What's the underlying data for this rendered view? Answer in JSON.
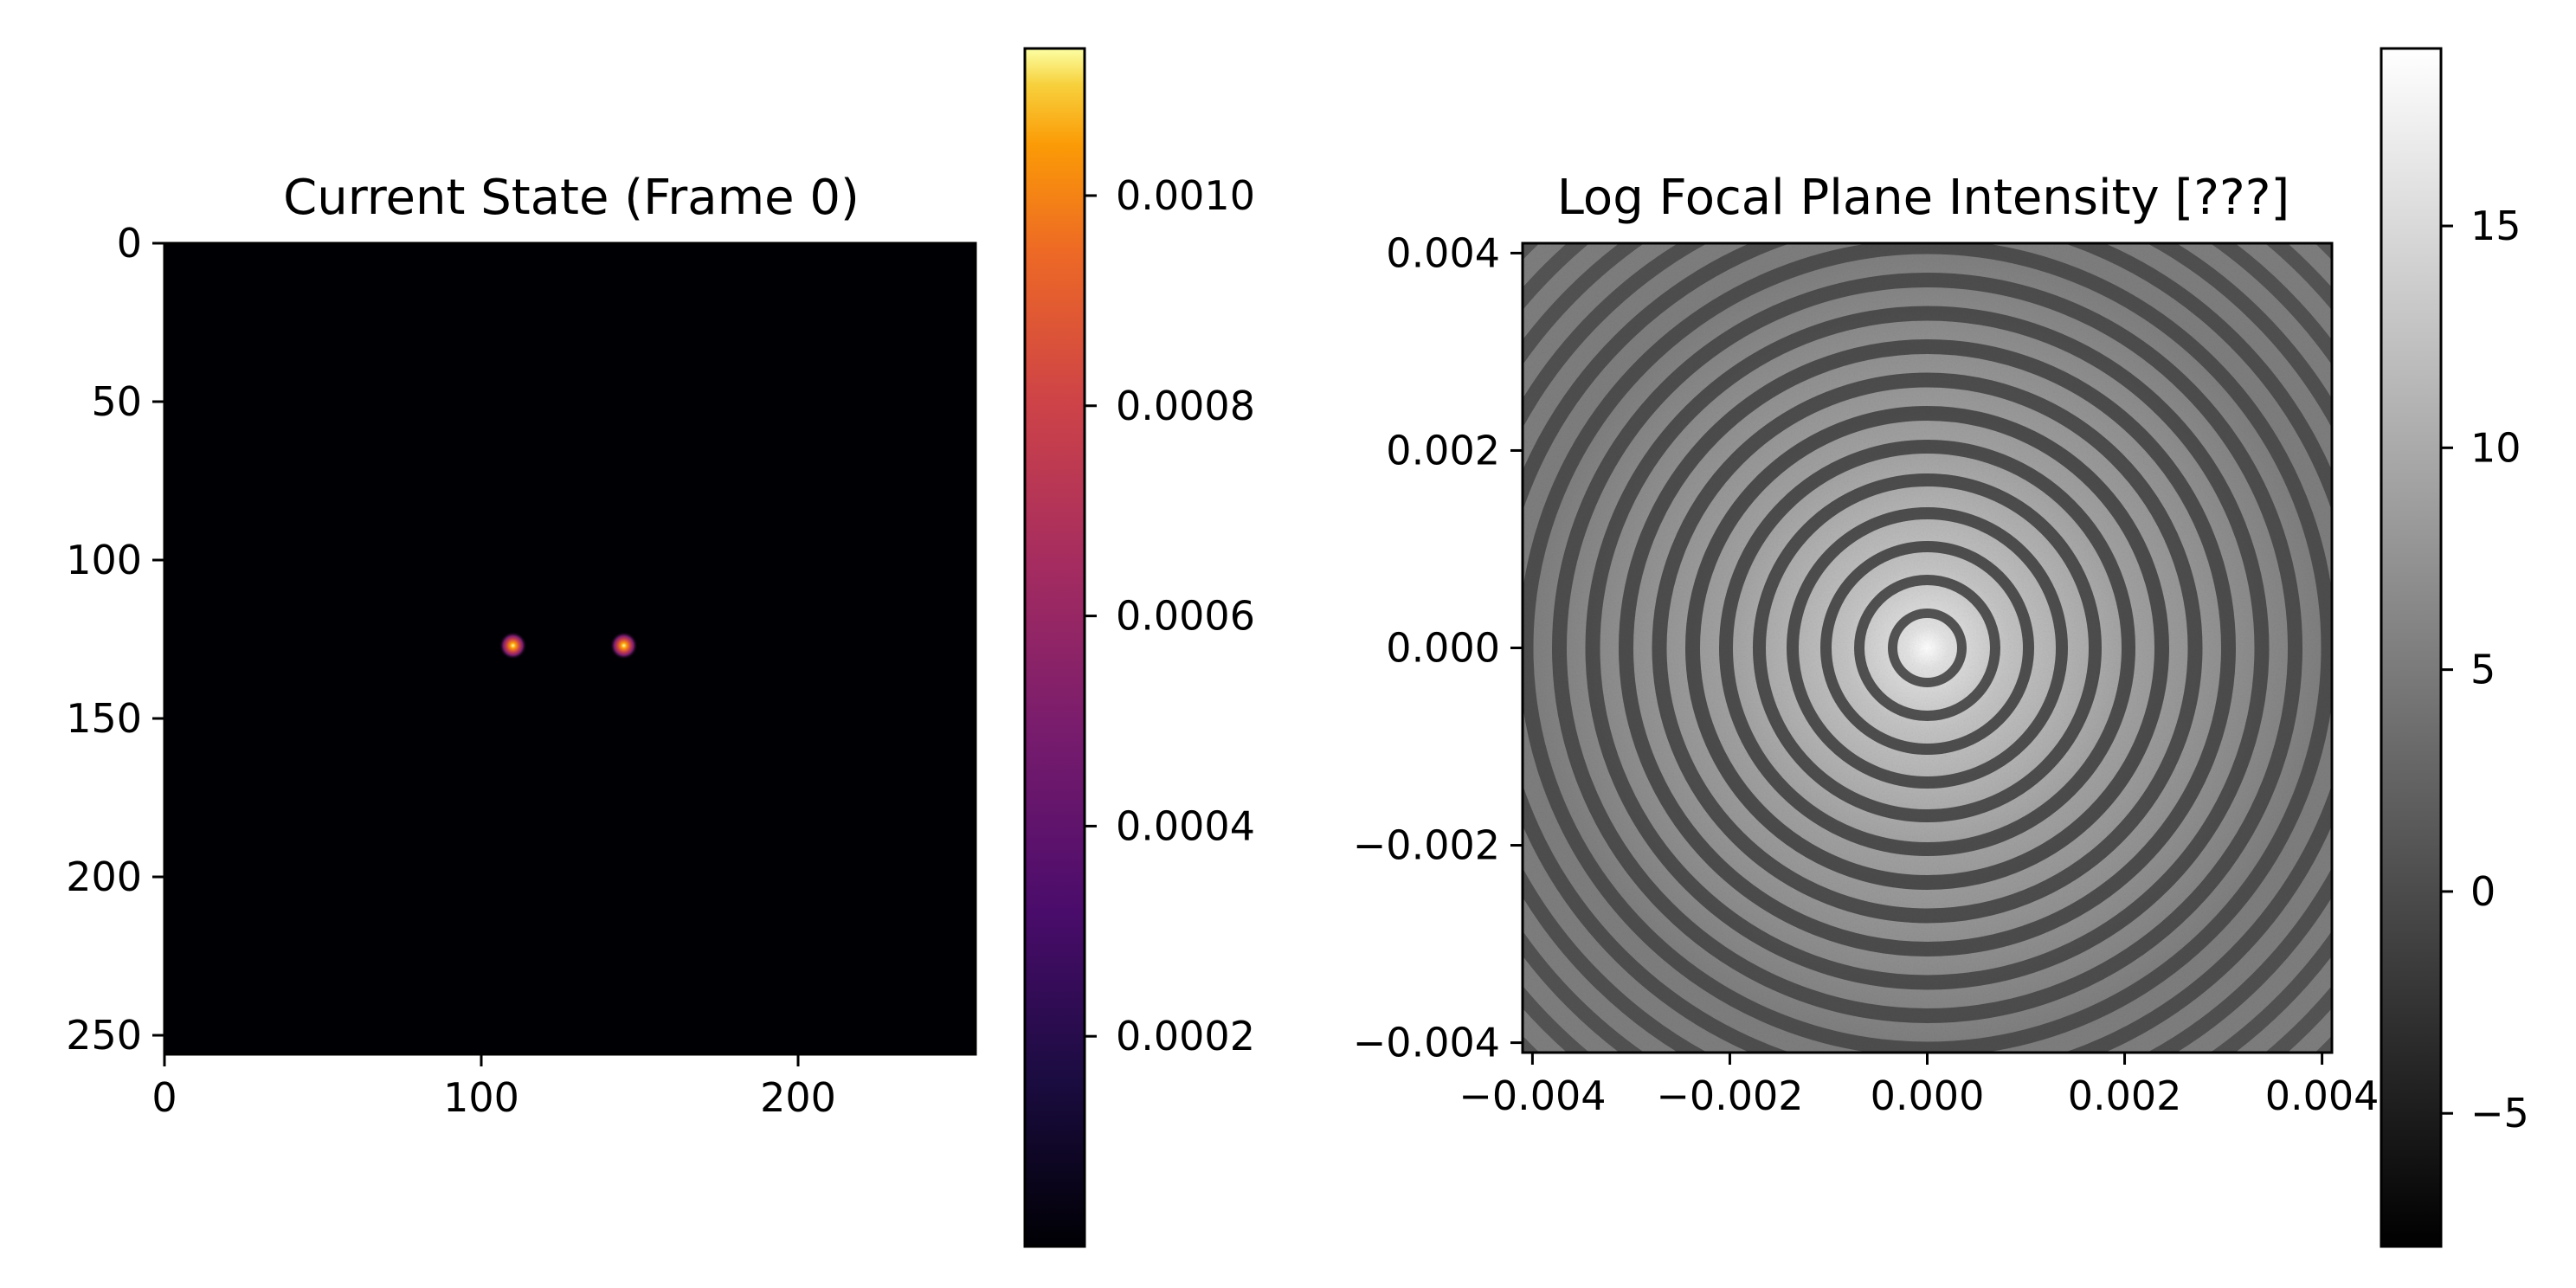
{
  "chart_data": [
    {
      "type": "heatmap",
      "title": "Current State (Frame 0)",
      "colormap": "inferno",
      "image_shape": [
        256,
        256
      ],
      "xlim": [
        0,
        256
      ],
      "ylim": [
        256,
        0
      ],
      "xticks": [
        0,
        100,
        200
      ],
      "xtick_labels": [
        "0",
        "100",
        "200"
      ],
      "yticks": [
        0,
        50,
        100,
        150,
        200,
        250
      ],
      "ytick_labels": [
        "0",
        "50",
        "100",
        "150",
        "200",
        "250"
      ],
      "point_sources": [
        {
          "x": 110,
          "y": 127
        },
        {
          "x": 145,
          "y": 127
        }
      ],
      "colorbar": {
        "range": [
          0.0,
          0.00114
        ],
        "ticks": [
          0.0002,
          0.0004,
          0.0006,
          0.0008,
          0.001
        ],
        "tick_labels": [
          "0.0002",
          "0.0004",
          "0.0006",
          "0.0008",
          "0.0010"
        ]
      }
    },
    {
      "type": "heatmap",
      "title": "Log Focal Plane Intensity [???]",
      "colormap": "gray",
      "xlim": [
        -0.0041,
        0.0041
      ],
      "ylim": [
        -0.0041,
        0.0041
      ],
      "xticks": [
        -0.004,
        -0.002,
        0.0,
        0.002,
        0.004
      ],
      "xtick_labels": [
        "−0.004",
        "−0.002",
        "0.000",
        "0.002",
        "0.004"
      ],
      "yticks": [
        0.004,
        0.002,
        0.0,
        -0.002,
        -0.004
      ],
      "ytick_labels": [
        "0.004",
        "0.002",
        "0.000",
        "−0.002",
        "−0.004"
      ],
      "pattern": "concentric rings (Airy pattern), bright center",
      "colorbar": {
        "range": [
          -8,
          19
        ],
        "ticks": [
          -5,
          0,
          5,
          10,
          15
        ],
        "tick_labels": [
          "−5",
          "0",
          "5",
          "10",
          "15"
        ]
      }
    }
  ]
}
